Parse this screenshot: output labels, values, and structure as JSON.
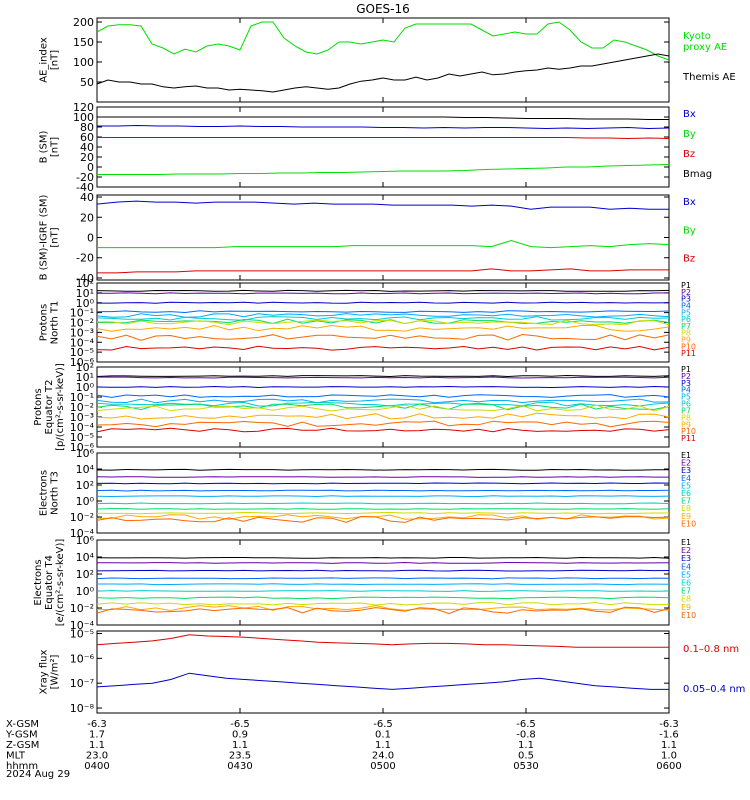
{
  "title": "GOES-16",
  "date_label": "2024 Aug 29",
  "colors": {
    "black": "#000000",
    "green": "#00dd00",
    "blue": "#0000cc",
    "red": "#dd0000",
    "p_colors": [
      "#000000",
      "#6600aa",
      "#0000cc",
      "#0066ff",
      "#00aaff",
      "#00cccc",
      "#00dd66",
      "#ccdd00",
      "#ffaa00",
      "#ff6600",
      "#dd0000",
      "#aa0000"
    ]
  },
  "x_axis": {
    "time_range": [
      "0400",
      "0600"
    ],
    "tick_labels": {
      "X-GSM": [
        "-6.3",
        "-6.5",
        "-6.5",
        "-6.5",
        "-6.3"
      ],
      "Y-GSM": [
        "1.7",
        "0.9",
        "0.1",
        "-0.8",
        "-1.6"
      ],
      "Z-GSM": [
        "1.1",
        "1.1",
        "1.1",
        "1.1",
        "1.1"
      ],
      "MLT": [
        "23.0",
        "23.5",
        "24.0",
        "0.5",
        "1.0"
      ],
      "hhmm": [
        "0400",
        "0430",
        "0500",
        "0530",
        "0600"
      ]
    },
    "row_labels": [
      "X-GSM",
      "Y-GSM",
      "Z-GSM",
      "MLT",
      "hhmm"
    ]
  },
  "chart_data": [
    {
      "type": "line",
      "ylabel": "AE_index\n[nT]",
      "ylim": [
        0,
        210
      ],
      "yscale": "linear",
      "yticks": [
        "50",
        "100",
        "150",
        "200"
      ],
      "series": [
        {
          "name": "Kyoto\nproxy AE",
          "color": "#00dd00",
          "values": [
            175,
            190,
            193,
            193,
            190,
            145,
            135,
            120,
            132,
            125,
            140,
            145,
            140,
            130,
            190,
            200,
            200,
            160,
            140,
            125,
            120,
            130,
            150,
            150,
            145,
            150,
            155,
            150,
            185,
            195,
            195,
            195,
            195,
            195,
            195,
            180,
            165,
            170,
            175,
            170,
            170,
            195,
            200,
            180,
            150,
            135,
            135,
            155,
            150,
            140,
            130,
            115,
            105
          ]
        },
        {
          "name": "Themis AE",
          "color": "#000000",
          "values": [
            45,
            55,
            50,
            50,
            45,
            45,
            38,
            35,
            38,
            40,
            35,
            35,
            30,
            32,
            30,
            28,
            25,
            30,
            35,
            38,
            35,
            32,
            35,
            45,
            52,
            55,
            60,
            55,
            55,
            62,
            55,
            60,
            70,
            65,
            70,
            75,
            68,
            70,
            75,
            78,
            80,
            85,
            82,
            85,
            90,
            90,
            95,
            100,
            105,
            110,
            115,
            120,
            115
          ]
        }
      ]
    },
    {
      "type": "line",
      "ylabel": "B (SM)\n[nT]",
      "ylim": [
        -40,
        120
      ],
      "yscale": "linear",
      "yticks": [
        "-40",
        "-20",
        "0",
        "20",
        "40",
        "60",
        "80",
        "100",
        "120"
      ],
      "series": [
        {
          "name": "Bx",
          "color": "#0000cc",
          "values": [
            82,
            82,
            83,
            82,
            82,
            81,
            81,
            82,
            81,
            81,
            80,
            80,
            80,
            80,
            79,
            79,
            78,
            79,
            78,
            79,
            79,
            78,
            77,
            78,
            77,
            78,
            79,
            77,
            78
          ]
        },
        {
          "name": "By",
          "color": "#00dd00",
          "values": [
            -15,
            -15,
            -15,
            -15,
            -14,
            -14,
            -14,
            -13,
            -13,
            -12,
            -12,
            -11,
            -11,
            -10,
            -9,
            -8,
            -8,
            -8,
            -7,
            -5,
            -4,
            -3,
            -2,
            0,
            0,
            2,
            3,
            4,
            5
          ]
        },
        {
          "name": "Bz",
          "color": "#dd0000",
          "values": [
            59,
            59,
            59,
            59,
            59,
            59,
            59,
            59,
            59,
            59,
            59,
            59,
            59,
            59,
            59,
            59,
            59,
            59,
            59,
            59,
            59,
            59,
            59,
            59,
            58,
            58,
            57,
            58,
            57
          ]
        },
        {
          "name": "Bmag",
          "color": "#000000",
          "values": [
            100,
            100,
            100,
            100,
            100,
            100,
            100,
            100,
            100,
            100,
            100,
            100,
            100,
            100,
            100,
            100,
            100,
            100,
            99,
            99,
            98,
            97,
            97,
            97,
            96,
            96,
            96,
            95,
            95
          ]
        }
      ]
    },
    {
      "type": "line",
      "ylabel": "B (SM)-IGRF (SM)\n[nT]",
      "ylim": [
        -42,
        42
      ],
      "yscale": "linear",
      "yticks": [
        "-40",
        "-20",
        "0",
        "20",
        "40"
      ],
      "series": [
        {
          "name": "Bx",
          "color": "#0000cc",
          "values": [
            33,
            35,
            36,
            35,
            35,
            34,
            35,
            35,
            35,
            34,
            33,
            34,
            33,
            33,
            33,
            32,
            32,
            32,
            32,
            31,
            32,
            31,
            28,
            30,
            30,
            30,
            28,
            29,
            28,
            28
          ]
        },
        {
          "name": "By",
          "color": "#00dd00",
          "values": [
            -10,
            -10,
            -10,
            -10,
            -10,
            -10,
            -10,
            -9,
            -9,
            -9,
            -9,
            -9,
            -9,
            -8,
            -8,
            -8,
            -8,
            -8,
            -8,
            -8,
            -9,
            -3,
            -9,
            -10,
            -9,
            -8,
            -9,
            -7,
            -6,
            -7
          ]
        },
        {
          "name": "Bz",
          "color": "#dd0000",
          "values": [
            -35,
            -35,
            -34,
            -34,
            -34,
            -33,
            -33,
            -33,
            -33,
            -33,
            -33,
            -33,
            -33,
            -33,
            -33,
            -33,
            -33,
            -33,
            -33,
            -33,
            -31,
            -33,
            -33,
            -32,
            -31,
            -33,
            -33,
            -32,
            -32,
            -32
          ]
        }
      ]
    },
    {
      "type": "line",
      "ylabel": "Protons\nNorth T1",
      "ylim": [
        -6,
        2
      ],
      "yscale": "log",
      "yticks": [
        "10⁻⁶",
        "10⁻⁵",
        "10⁻⁴",
        "10⁻³",
        "10⁻²",
        "10⁻¹",
        "10⁰",
        "10¹",
        "10²"
      ],
      "series_note": "log10 flux",
      "series": [
        {
          "name": "P1",
          "level": 1.2,
          "jitter": 0.05
        },
        {
          "name": "P2",
          "level": 0.95,
          "jitter": 0.05
        },
        {
          "name": "P3",
          "level": 0.0,
          "jitter": 0.05
        },
        {
          "name": "P4",
          "level": -0.9,
          "jitter": 0.1
        },
        {
          "name": "P5",
          "level": -1.3,
          "jitter": 0.2
        },
        {
          "name": "P6",
          "level": -1.6,
          "jitter": 0.2
        },
        {
          "name": "P7",
          "level": -1.9,
          "jitter": 0.25
        },
        {
          "name": "P8",
          "level": -2.0,
          "jitter": 0.25
        },
        {
          "name": "P9",
          "level": -2.6,
          "jitter": 0.3
        },
        {
          "name": "P10",
          "level": -3.5,
          "jitter": 0.3
        },
        {
          "name": "P11",
          "level": -4.6,
          "jitter": 0.2
        }
      ]
    },
    {
      "type": "line",
      "ylabel": "Protons\nEquator T2\n[p/(cm²-s-sr-keV)]",
      "ylim": [
        -6,
        2
      ],
      "yscale": "log",
      "yticks": [
        "10⁻⁶",
        "10⁻⁵",
        "10⁻⁴",
        "10⁻³",
        "10⁻²",
        "10⁻¹",
        "10⁰",
        "10¹",
        "10²"
      ],
      "series": [
        {
          "name": "P1",
          "level": 1.1,
          "jitter": 0.05
        },
        {
          "name": "P2",
          "level": 0.95,
          "jitter": 0.05
        },
        {
          "name": "P3",
          "level": 0.0,
          "jitter": 0.05
        },
        {
          "name": "P4",
          "level": -0.9,
          "jitter": 0.15
        },
        {
          "name": "P5",
          "level": -1.4,
          "jitter": 0.2
        },
        {
          "name": "P6",
          "level": -1.7,
          "jitter": 0.2
        },
        {
          "name": "P7",
          "level": -2.0,
          "jitter": 0.3
        },
        {
          "name": "P8",
          "level": -2.1,
          "jitter": 0.3
        },
        {
          "name": "P9",
          "level": -2.9,
          "jitter": 0.3
        },
        {
          "name": "P10",
          "level": -3.7,
          "jitter": 0.3
        },
        {
          "name": "P11",
          "level": -4.3,
          "jitter": 0.2
        }
      ]
    },
    {
      "type": "line",
      "ylabel": "Electrons\nNorth T3",
      "ylim": [
        -4,
        6
      ],
      "yscale": "log",
      "yticks": [
        "10⁻⁴",
        "10⁻²",
        "10⁰",
        "10²",
        "10⁴",
        "10⁶"
      ],
      "series": [
        {
          "name": "E1",
          "level": 3.9,
          "jitter": 0.05
        },
        {
          "name": "E2",
          "level": 3.0,
          "jitter": 0.05
        },
        {
          "name": "E3",
          "level": 2.2,
          "jitter": 0.05
        },
        {
          "name": "E4",
          "level": 1.3,
          "jitter": 0.05
        },
        {
          "name": "E5",
          "level": 0.6,
          "jitter": 0.05
        },
        {
          "name": "E6",
          "level": -0.3,
          "jitter": 0.05
        },
        {
          "name": "E7",
          "level": -1.0,
          "jitter": 0.05
        },
        {
          "name": "E8",
          "level": -1.5,
          "jitter": 0.1
        },
        {
          "name": "E9",
          "level": -2.0,
          "jitter": 0.3
        },
        {
          "name": "E10",
          "level": -2.3,
          "jitter": 0.4
        }
      ]
    },
    {
      "type": "line",
      "ylabel": "Electrons\nEquator T4\n[e/(cm²-s-sr-keV)]",
      "ylim": [
        -4,
        6
      ],
      "yscale": "log",
      "yticks": [
        "10⁻⁴",
        "10⁻²",
        "10⁰",
        "10²",
        "10⁴",
        "10⁶"
      ],
      "series": [
        {
          "name": "E1",
          "level": 3.9,
          "jitter": 0.05
        },
        {
          "name": "E2",
          "level": 3.3,
          "jitter": 0.05
        },
        {
          "name": "E3",
          "level": 2.4,
          "jitter": 0.05
        },
        {
          "name": "E4",
          "level": 1.5,
          "jitter": 0.05
        },
        {
          "name": "E5",
          "level": 0.8,
          "jitter": 0.05
        },
        {
          "name": "E6",
          "level": 0.0,
          "jitter": 0.05
        },
        {
          "name": "E7",
          "level": -0.8,
          "jitter": 0.1
        },
        {
          "name": "E8",
          "level": -1.5,
          "jitter": 0.15
        },
        {
          "name": "E9",
          "level": -2.0,
          "jitter": 0.3
        },
        {
          "name": "E10",
          "level": -2.3,
          "jitter": 0.4
        }
      ]
    },
    {
      "type": "line",
      "ylabel": "Xray flux\n[W/m²]",
      "ylim": [
        -8.2,
        -4.9
      ],
      "yscale": "log",
      "yticks": [
        "10⁻⁸",
        "10⁻⁷",
        "10⁻⁶",
        "10⁻⁵"
      ],
      "series": [
        {
          "name": "0.1–0.8 nm",
          "color": "#dd0000",
          "values": [
            -5.45,
            -5.4,
            -5.35,
            -5.3,
            -5.2,
            -5.05,
            -5.1,
            -5.12,
            -5.15,
            -5.2,
            -5.25,
            -5.3,
            -5.35,
            -5.38,
            -5.4,
            -5.42,
            -5.45,
            -5.42,
            -5.4,
            -5.4,
            -5.42,
            -5.45,
            -5.45,
            -5.48,
            -5.5,
            -5.52,
            -5.55,
            -5.55,
            -5.55,
            -5.55,
            -5.55,
            -5.55
          ]
        },
        {
          "name": "0.05–0.4 nm",
          "color": "#0000cc",
          "values": [
            -7.15,
            -7.1,
            -7.05,
            -7.0,
            -6.85,
            -6.6,
            -6.7,
            -6.8,
            -6.85,
            -6.9,
            -6.95,
            -7.0,
            -7.05,
            -7.1,
            -7.15,
            -7.2,
            -7.25,
            -7.2,
            -7.15,
            -7.1,
            -7.05,
            -7.0,
            -6.95,
            -6.85,
            -6.8,
            -6.9,
            -7.0,
            -7.1,
            -7.15,
            -7.2,
            -7.25,
            -7.25
          ]
        }
      ]
    }
  ]
}
